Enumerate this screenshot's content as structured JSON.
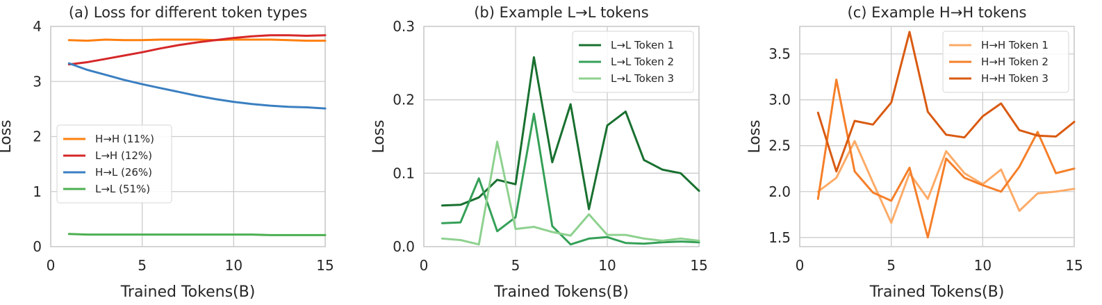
{
  "chart_data": [
    {
      "type": "line",
      "title": "(a) Loss for different token types",
      "xlabel": "Trained Tokens(B)",
      "ylabel": "Loss",
      "xlim": [
        0,
        15
      ],
      "ylim": [
        0,
        4
      ],
      "xticks": [
        0,
        5,
        10,
        15
      ],
      "yticks": [
        0,
        1,
        2,
        3,
        4
      ],
      "ytick_labels": [
        "0",
        "1",
        "2",
        "3",
        "4"
      ],
      "grid": true,
      "legend_position": "center-left",
      "x": [
        1,
        2,
        3,
        4,
        5,
        6,
        7,
        8,
        9,
        10,
        11,
        12,
        13,
        14,
        15
      ],
      "series": [
        {
          "name": "H→H (11%)",
          "color": "#ff7f0e",
          "values": [
            3.75,
            3.74,
            3.76,
            3.75,
            3.75,
            3.76,
            3.76,
            3.76,
            3.75,
            3.76,
            3.76,
            3.76,
            3.75,
            3.74,
            3.74
          ]
        },
        {
          "name": "L→H (12%)",
          "color": "#d62728",
          "values": [
            3.31,
            3.35,
            3.41,
            3.47,
            3.53,
            3.6,
            3.66,
            3.71,
            3.75,
            3.79,
            3.82,
            3.84,
            3.84,
            3.83,
            3.84
          ]
        },
        {
          "name": "H→L (26%)",
          "color": "#3a7fc1",
          "values": [
            3.33,
            3.21,
            3.12,
            3.03,
            2.95,
            2.88,
            2.81,
            2.74,
            2.68,
            2.63,
            2.59,
            2.56,
            2.54,
            2.53,
            2.51
          ]
        },
        {
          "name": "L→L (51%)",
          "color": "#4caf50",
          "values": [
            0.23,
            0.22,
            0.22,
            0.22,
            0.22,
            0.22,
            0.22,
            0.22,
            0.22,
            0.22,
            0.22,
            0.21,
            0.21,
            0.21,
            0.21
          ]
        }
      ]
    },
    {
      "type": "line",
      "title": "(b) Example L→L tokens",
      "xlabel": "Trained Tokens(B)",
      "ylabel": "Loss",
      "xlim": [
        0,
        15
      ],
      "ylim": [
        0,
        0.3
      ],
      "xticks": [
        0,
        5,
        10,
        15
      ],
      "yticks": [
        0,
        0.1,
        0.2,
        0.3
      ],
      "ytick_labels": [
        "0.0",
        "0.1",
        "0.2",
        "0.3"
      ],
      "grid": true,
      "legend_position": "top-right",
      "x": [
        1,
        2,
        3,
        4,
        5,
        6,
        7,
        8,
        9,
        10,
        11,
        12,
        13,
        14,
        15
      ],
      "series": [
        {
          "name": "L→L Token 1",
          "color": "#18702f",
          "values": [
            0.056,
            0.057,
            0.067,
            0.091,
            0.085,
            0.258,
            0.115,
            0.194,
            0.051,
            0.165,
            0.184,
            0.118,
            0.105,
            0.1,
            0.076
          ]
        },
        {
          "name": "L→L Token 2",
          "color": "#35a058",
          "values": [
            0.032,
            0.033,
            0.093,
            0.021,
            0.04,
            0.181,
            0.028,
            0.003,
            0.011,
            0.013,
            0.005,
            0.004,
            0.006,
            0.007,
            0.006
          ]
        },
        {
          "name": "L→L Token 3",
          "color": "#8ed18f",
          "values": [
            0.011,
            0.009,
            0.003,
            0.143,
            0.024,
            0.027,
            0.02,
            0.015,
            0.044,
            0.016,
            0.016,
            0.011,
            0.008,
            0.011,
            0.008
          ]
        }
      ]
    },
    {
      "type": "line",
      "title": "(c) Example H→H tokens",
      "xlabel": "Trained Tokens(B)",
      "ylabel": "Loss",
      "xlim": [
        0,
        15
      ],
      "ylim": [
        1.4,
        3.8
      ],
      "xticks": [
        0,
        5,
        10,
        15
      ],
      "yticks": [
        1.5,
        2.0,
        2.5,
        3.0,
        3.5
      ],
      "ytick_labels": [
        "1.5",
        "2.0",
        "2.5",
        "3.0",
        "3.5"
      ],
      "grid": true,
      "legend_position": "top-right",
      "x": [
        1,
        2,
        3,
        4,
        5,
        6,
        7,
        8,
        9,
        10,
        11,
        12,
        13,
        14,
        15
      ],
      "series": [
        {
          "name": "H→H Token 1",
          "color": "#fdab67",
          "values": [
            2.0,
            2.15,
            2.55,
            2.1,
            1.66,
            2.2,
            1.92,
            2.44,
            2.2,
            2.08,
            2.24,
            1.79,
            1.98,
            2.0,
            2.03
          ]
        },
        {
          "name": "H→H Token 2",
          "color": "#f57f29",
          "values": [
            1.92,
            3.22,
            2.22,
            1.99,
            1.9,
            2.26,
            1.5,
            2.36,
            2.15,
            2.07,
            2.0,
            2.27,
            2.65,
            2.2,
            2.25
          ]
        },
        {
          "name": "H→H Token 3",
          "color": "#d95a11",
          "values": [
            2.86,
            2.22,
            2.77,
            2.73,
            2.97,
            3.74,
            2.87,
            2.62,
            2.59,
            2.82,
            2.96,
            2.67,
            2.61,
            2.6,
            2.76
          ]
        }
      ]
    }
  ]
}
